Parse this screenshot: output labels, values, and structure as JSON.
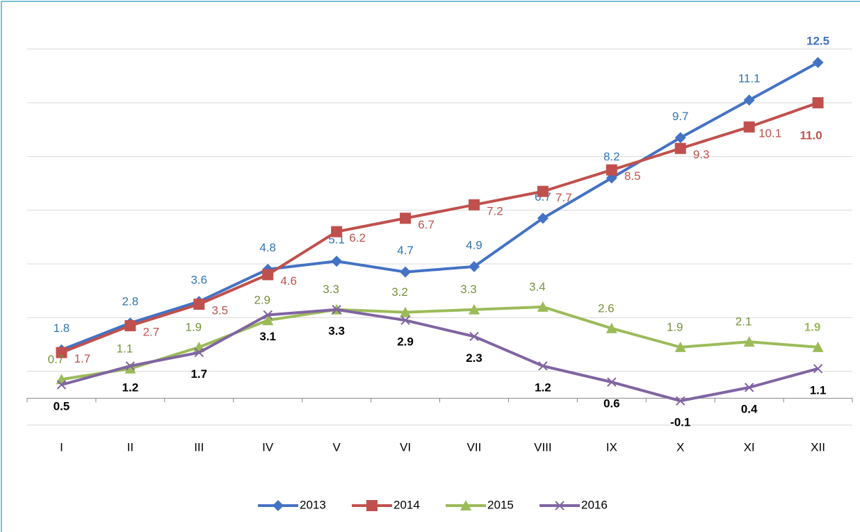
{
  "chart_data": {
    "type": "line",
    "categories": [
      "I",
      "II",
      "III",
      "IV",
      "V",
      "VI",
      "VII",
      "VIII",
      "IX",
      "X",
      "XI",
      "XII"
    ],
    "series": [
      {
        "name": "2013",
        "color": "#4472c4",
        "marker": "diamond",
        "values": [
          1.8,
          2.8,
          3.6,
          4.8,
          5.1,
          4.7,
          4.9,
          6.7,
          8.2,
          9.7,
          11.1,
          12.5
        ]
      },
      {
        "name": "2014",
        "color": "#c0504d",
        "marker": "square",
        "values": [
          1.7,
          2.7,
          3.5,
          4.6,
          6.2,
          6.7,
          7.2,
          7.7,
          8.5,
          9.3,
          10.1,
          11.0
        ],
        "value_labels": [
          "1.7",
          "2.7",
          "3.5",
          "4.6",
          "6.2",
          "6.7",
          "7.2",
          "7.7",
          "8.5",
          "9.3",
          "10.1",
          "11.0"
        ]
      },
      {
        "name": "2015",
        "color": "#9bbb59",
        "marker": "triangle",
        "values": [
          0.7,
          1.1,
          1.9,
          2.9,
          3.3,
          3.2,
          3.3,
          3.4,
          2.6,
          1.9,
          2.1,
          1.9
        ]
      },
      {
        "name": "2016",
        "color": "#8064a2",
        "marker": "x",
        "values": [
          0.5,
          1.2,
          1.7,
          3.1,
          3.3,
          2.9,
          2.3,
          1.2,
          0.6,
          -0.1,
          0.4,
          1.1
        ]
      }
    ],
    "ylim": [
      -1,
      14
    ],
    "yticks": [
      -1,
      1,
      3,
      5,
      7,
      9,
      11,
      13
    ],
    "grid": true,
    "legend": "bottom"
  }
}
